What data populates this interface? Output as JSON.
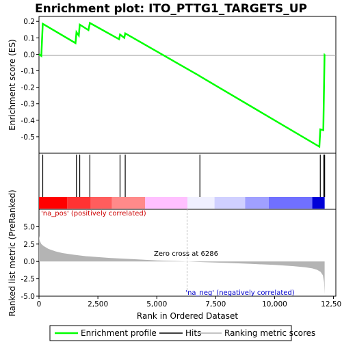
{
  "chart_data": {
    "type": "line",
    "title": "Enrichment plot: ITO_PTTG1_TARGETS_UP",
    "xlabel": "Rank in Ordered Dataset",
    "top_ylabel": "Enrichment score (ES)",
    "bottom_ylabel": "Ranked list metric (PreRanked)",
    "xlim": [
      0,
      12600
    ],
    "top_ylim": [
      -0.6,
      0.23
    ],
    "bottom_ylim": [
      -5,
      7.5
    ],
    "x_ticks": [
      0,
      2500,
      5000,
      7500,
      10000,
      12500
    ],
    "x_tick_labels": [
      "0",
      "2,500",
      "5,000",
      "7,500",
      "10,000",
      "12,500"
    ],
    "top_y_ticks": [
      -0.5,
      -0.4,
      -0.3,
      -0.2,
      -0.1,
      0.0,
      0.1,
      0.2
    ],
    "top_y_tick_labels": [
      "-0.5",
      "-0.4",
      "-0.3",
      "-0.2",
      "-0.1",
      "0.0",
      "0.1",
      "0.2"
    ],
    "bottom_y_ticks": [
      -5.0,
      -2.5,
      0.0,
      2.5,
      5.0
    ],
    "bottom_y_tick_labels": [
      "-5.0",
      "-2.5",
      "0.0",
      "2.5",
      "5.0"
    ],
    "enrichment_profile": {
      "x": [
        0,
        100,
        160,
        1550,
        1590,
        1690,
        1730,
        2100,
        2160,
        3400,
        3440,
        3620,
        3660,
        6800,
        6830,
        11900,
        11940,
        12070,
        12090,
        12120,
        12125
      ],
      "y": [
        0.0,
        -0.01,
        0.185,
        0.068,
        0.134,
        0.114,
        0.18,
        0.147,
        0.19,
        0.092,
        0.12,
        0.1,
        0.127,
        -0.13,
        -0.133,
        -0.56,
        -0.455,
        -0.46,
        -0.275,
        0.0,
        0.0
      ]
    },
    "hits": [
      160,
      1590,
      1730,
      2160,
      3440,
      3660,
      6830,
      11940,
      12090,
      12125
    ],
    "ranking_metric": {
      "x": [
        0,
        30,
        100,
        200,
        400,
        700,
        1000,
        1500,
        2000,
        3000,
        4000,
        5000,
        6286,
        7000,
        8000,
        9000,
        10000,
        10800,
        11300,
        11600,
        11800,
        11950,
        12050,
        12100,
        12125
      ],
      "y": [
        3.7,
        3.0,
        2.5,
        2.2,
        1.8,
        1.45,
        1.2,
        0.95,
        0.75,
        0.5,
        0.32,
        0.15,
        0.0,
        -0.1,
        -0.22,
        -0.35,
        -0.5,
        -0.68,
        -0.85,
        -1.0,
        -1.2,
        -1.5,
        -2.0,
        -3.0,
        -4.7
      ]
    },
    "heatmap_colors": [
      "#ff0000",
      "#ff3333",
      "#ff5d5d",
      "#ff8a8a",
      "#ffc0ff",
      "#f0f0ff",
      "#d0d0ff",
      "#a0a0ff",
      "#7070ff",
      "#0000d8"
    ],
    "heatmap_bounds": [
      0,
      1200,
      2200,
      3100,
      4500,
      6300,
      7450,
      8750,
      9750,
      11600,
      12125
    ],
    "zero_cross_value": 6286,
    "zero_cross_label": "Zero cross at 6286",
    "pos_label": "'na_pos' (positively correlated)",
    "neg_label": "'na_neg' (negatively correlated)",
    "legend": [
      {
        "name": "Enrichment profile",
        "color": "#00ff00"
      },
      {
        "name": "Hits",
        "color": "#000000"
      },
      {
        "name": "Ranking metric scores",
        "color": "#b0b0b0"
      }
    ],
    "colors": {
      "profile": "#00ff00",
      "hits": "#000000",
      "metric": "#b4b4b4",
      "pos_text": "#cc0000",
      "neg_text": "#0000cc",
      "zero_line": "#bbbbbb"
    }
  }
}
